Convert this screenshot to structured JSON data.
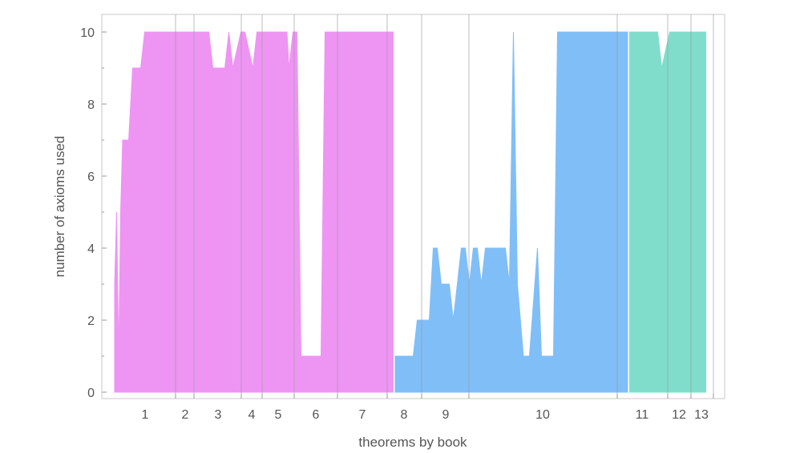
{
  "chart_data": {
    "type": "area",
    "xlabel": "theorems by book",
    "ylabel": "number of axioms used",
    "ylim": [
      0,
      10
    ],
    "yticks": [
      0,
      2,
      4,
      6,
      8,
      10
    ],
    "grid": "vertical lines at book boundaries",
    "x_categories": [
      "1",
      "2",
      "3",
      "4",
      "5",
      "6",
      "7",
      "8",
      "9",
      "10",
      "11",
      "12",
      "13"
    ],
    "series": [
      {
        "color": "#ee94f3",
        "books": [
          "1",
          "2",
          "3",
          "4",
          "5",
          "6"
        ],
        "x": [
          1,
          2,
          3,
          4,
          5,
          6,
          8,
          10,
          12,
          14,
          16,
          20,
          26,
          28,
          48,
          50,
          53,
          56,
          58,
          60,
          64,
          66,
          70,
          72,
          74,
          75,
          78,
          80,
          85,
          87,
          88,
          90,
          92,
          94,
          100,
          102,
          104,
          106,
          116,
          140
        ],
        "values": [
          3,
          5,
          1,
          5,
          7,
          7,
          7,
          9,
          9,
          9,
          10,
          10,
          10,
          10,
          10,
          9,
          9,
          9,
          10,
          9,
          10,
          10,
          9,
          10,
          10,
          10,
          10,
          10,
          10,
          10,
          9,
          10,
          10,
          1,
          1,
          1,
          1,
          10,
          10,
          10
        ]
      },
      {
        "color": "#80bef7",
        "books": [
          "7",
          "8",
          "9",
          "10"
        ],
        "x": [
          141,
          146,
          150,
          152,
          156,
          158,
          160,
          162,
          164,
          166,
          168,
          170,
          172,
          174,
          176,
          178,
          180,
          182,
          184,
          186,
          188,
          190,
          192,
          194,
          196,
          198,
          200,
          202,
          205,
          208,
          212,
          214,
          220,
          222,
          225,
          232,
          235,
          240,
          250,
          257
        ],
        "values": [
          1,
          1,
          1,
          2,
          2,
          2,
          4,
          4,
          3,
          3,
          3,
          2,
          3,
          4,
          4,
          3,
          4,
          4,
          3,
          4,
          4,
          4,
          4,
          4,
          4,
          3,
          10,
          3,
          1,
          1,
          4,
          1,
          1,
          10,
          10,
          10,
          10,
          10,
          10,
          10
        ]
      },
      {
        "color": "#80ddcc",
        "books": [
          "11",
          "12",
          "13"
        ],
        "x": [
          258,
          260,
          265,
          272,
          274,
          278,
          282,
          290,
          296
        ],
        "values": [
          10,
          10,
          10,
          10,
          9,
          10,
          10,
          10,
          10
        ]
      }
    ]
  }
}
